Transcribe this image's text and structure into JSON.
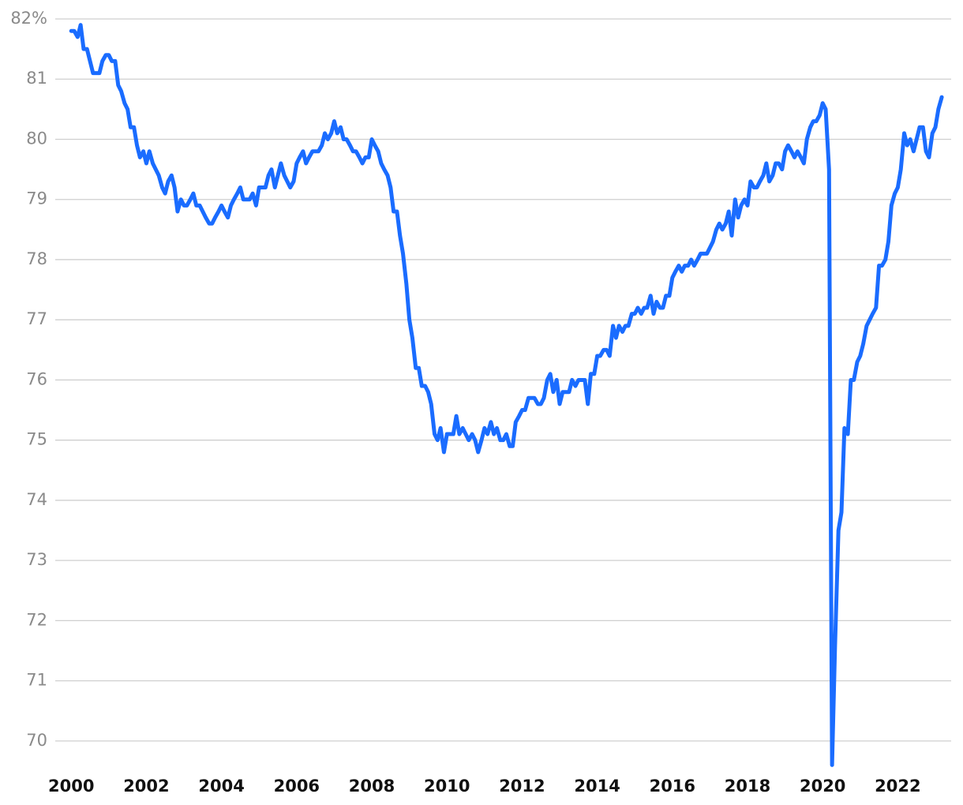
{
  "chart_data": {
    "type": "line",
    "x": [
      2000,
      2000.08,
      2000.17,
      2000.25,
      2000.33,
      2000.42,
      2000.5,
      2000.58,
      2000.67,
      2000.75,
      2000.83,
      2000.92,
      2001,
      2001.08,
      2001.17,
      2001.25,
      2001.33,
      2001.42,
      2001.5,
      2001.58,
      2001.67,
      2001.75,
      2001.83,
      2001.92,
      2002,
      2002.08,
      2002.17,
      2002.25,
      2002.33,
      2002.42,
      2002.5,
      2002.58,
      2002.67,
      2002.75,
      2002.83,
      2002.92,
      2003,
      2003.08,
      2003.17,
      2003.25,
      2003.33,
      2003.42,
      2003.5,
      2003.58,
      2003.67,
      2003.75,
      2003.83,
      2003.92,
      2004,
      2004.08,
      2004.17,
      2004.25,
      2004.33,
      2004.42,
      2004.5,
      2004.58,
      2004.67,
      2004.75,
      2004.83,
      2004.92,
      2005,
      2005.08,
      2005.17,
      2005.25,
      2005.33,
      2005.42,
      2005.5,
      2005.58,
      2005.67,
      2005.75,
      2005.83,
      2005.92,
      2006,
      2006.08,
      2006.17,
      2006.25,
      2006.33,
      2006.42,
      2006.5,
      2006.58,
      2006.67,
      2006.75,
      2006.83,
      2006.92,
      2007,
      2007.08,
      2007.17,
      2007.25,
      2007.33,
      2007.42,
      2007.5,
      2007.58,
      2007.67,
      2007.75,
      2007.83,
      2007.92,
      2008,
      2008.08,
      2008.17,
      2008.25,
      2008.33,
      2008.42,
      2008.5,
      2008.58,
      2008.67,
      2008.75,
      2008.83,
      2008.92,
      2009,
      2009.08,
      2009.17,
      2009.25,
      2009.33,
      2009.42,
      2009.5,
      2009.58,
      2009.67,
      2009.75,
      2009.83,
      2009.92,
      2010,
      2010.08,
      2010.17,
      2010.25,
      2010.33,
      2010.42,
      2010.5,
      2010.58,
      2010.67,
      2010.75,
      2010.83,
      2010.92,
      2011,
      2011.08,
      2011.17,
      2011.25,
      2011.33,
      2011.42,
      2011.5,
      2011.58,
      2011.67,
      2011.75,
      2011.83,
      2011.92,
      2012,
      2012.08,
      2012.17,
      2012.25,
      2012.33,
      2012.42,
      2012.5,
      2012.58,
      2012.67,
      2012.75,
      2012.83,
      2012.92,
      2013,
      2013.08,
      2013.17,
      2013.25,
      2013.33,
      2013.42,
      2013.5,
      2013.58,
      2013.67,
      2013.75,
      2013.83,
      2013.92,
      2014,
      2014.08,
      2014.17,
      2014.25,
      2014.33,
      2014.42,
      2014.5,
      2014.58,
      2014.67,
      2014.75,
      2014.83,
      2014.92,
      2015,
      2015.08,
      2015.17,
      2015.25,
      2015.33,
      2015.42,
      2015.5,
      2015.58,
      2015.67,
      2015.75,
      2015.83,
      2015.92,
      2016,
      2016.08,
      2016.17,
      2016.25,
      2016.33,
      2016.42,
      2016.5,
      2016.58,
      2016.67,
      2016.75,
      2016.83,
      2016.92,
      2017,
      2017.08,
      2017.17,
      2017.25,
      2017.33,
      2017.42,
      2017.5,
      2017.58,
      2017.67,
      2017.75,
      2017.83,
      2017.92,
      2018,
      2018.08,
      2018.17,
      2018.25,
      2018.33,
      2018.42,
      2018.5,
      2018.58,
      2018.67,
      2018.75,
      2018.83,
      2018.92,
      2019,
      2019.08,
      2019.17,
      2019.25,
      2019.33,
      2019.42,
      2019.5,
      2019.58,
      2019.67,
      2019.75,
      2019.83,
      2019.92,
      2020,
      2020.08,
      2020.17,
      2020.25,
      2020.33,
      2020.42,
      2020.5,
      2020.58,
      2020.67,
      2020.75,
      2020.83,
      2020.92,
      2021,
      2021.08,
      2021.17,
      2021.25,
      2021.33,
      2021.42,
      2021.5,
      2021.58,
      2021.67,
      2021.75,
      2021.83,
      2021.92,
      2022,
      2022.08,
      2022.17,
      2022.25,
      2022.33,
      2022.42,
      2022.5,
      2022.58,
      2022.67,
      2022.75,
      2022.83,
      2022.92,
      2023,
      2023.08,
      2023.17
    ],
    "series": [
      {
        "color": "#1a6cff",
        "values": [
          81.8,
          81.8,
          81.7,
          81.9,
          81.5,
          81.5,
          81.3,
          81.1,
          81.1,
          81.1,
          81.3,
          81.4,
          81.4,
          81.3,
          81.3,
          80.9,
          80.8,
          80.6,
          80.5,
          80.2,
          80.2,
          79.9,
          79.7,
          79.8,
          79.6,
          79.8,
          79.6,
          79.5,
          79.4,
          79.2,
          79.1,
          79.3,
          79.4,
          79.2,
          78.8,
          79.0,
          78.9,
          78.9,
          79.0,
          79.1,
          78.9,
          78.9,
          78.8,
          78.7,
          78.6,
          78.6,
          78.7,
          78.8,
          78.9,
          78.8,
          78.7,
          78.9,
          79.0,
          79.1,
          79.2,
          79.0,
          79.0,
          79.0,
          79.1,
          78.9,
          79.2,
          79.2,
          79.2,
          79.4,
          79.5,
          79.2,
          79.4,
          79.6,
          79.4,
          79.3,
          79.2,
          79.3,
          79.6,
          79.7,
          79.8,
          79.6,
          79.7,
          79.8,
          79.8,
          79.8,
          79.9,
          80.1,
          80.0,
          80.1,
          80.3,
          80.1,
          80.2,
          80.0,
          80.0,
          79.9,
          79.8,
          79.8,
          79.7,
          79.6,
          79.7,
          79.7,
          80.0,
          79.9,
          79.8,
          79.6,
          79.5,
          79.4,
          79.2,
          78.8,
          78.8,
          78.4,
          78.1,
          77.6,
          77.0,
          76.7,
          76.2,
          76.2,
          75.9,
          75.9,
          75.8,
          75.6,
          75.1,
          75.0,
          75.2,
          74.8,
          75.1,
          75.1,
          75.1,
          75.4,
          75.1,
          75.2,
          75.1,
          75.0,
          75.1,
          75.0,
          74.8,
          75.0,
          75.2,
          75.1,
          75.3,
          75.1,
          75.2,
          75.0,
          75.0,
          75.1,
          74.9,
          74.9,
          75.3,
          75.4,
          75.5,
          75.5,
          75.7,
          75.7,
          75.7,
          75.6,
          75.6,
          75.7,
          76.0,
          76.1,
          75.8,
          76.0,
          75.6,
          75.8,
          75.8,
          75.8,
          76.0,
          75.9,
          76.0,
          76.0,
          76.0,
          75.6,
          76.1,
          76.1,
          76.4,
          76.4,
          76.5,
          76.5,
          76.4,
          76.9,
          76.7,
          76.9,
          76.8,
          76.9,
          76.9,
          77.1,
          77.1,
          77.2,
          77.1,
          77.2,
          77.2,
          77.4,
          77.1,
          77.3,
          77.2,
          77.2,
          77.4,
          77.4,
          77.7,
          77.8,
          77.9,
          77.8,
          77.9,
          77.9,
          78.0,
          77.9,
          78.0,
          78.1,
          78.1,
          78.1,
          78.2,
          78.3,
          78.5,
          78.6,
          78.5,
          78.6,
          78.8,
          78.4,
          79.0,
          78.7,
          78.9,
          79.0,
          78.9,
          79.3,
          79.2,
          79.2,
          79.3,
          79.4,
          79.6,
          79.3,
          79.4,
          79.6,
          79.6,
          79.5,
          79.8,
          79.9,
          79.8,
          79.7,
          79.8,
          79.7,
          79.6,
          80.0,
          80.2,
          80.3,
          80.3,
          80.4,
          80.6,
          80.5,
          79.5,
          69.6,
          71.6,
          73.5,
          73.8,
          75.2,
          75.1,
          76.0,
          76.0,
          76.3,
          76.4,
          76.6,
          76.9,
          77.0,
          77.1,
          77.2,
          77.9,
          77.9,
          78.0,
          78.3,
          78.9,
          79.1,
          79.2,
          79.5,
          80.1,
          79.9,
          80.0,
          79.8,
          80.0,
          80.2,
          80.2,
          79.8,
          79.7,
          80.1,
          80.2,
          80.5,
          80.7
        ]
      }
    ],
    "xlim": [
      1999.47,
      2023.42
    ],
    "xticks": [
      2000,
      2002,
      2004,
      2006,
      2008,
      2010,
      2012,
      2014,
      2016,
      2018,
      2020,
      2022
    ],
    "ylim": [
      69.5,
      82.2
    ],
    "yticks": [
      70,
      71,
      72,
      73,
      74,
      75,
      76,
      77,
      78,
      79,
      80,
      81,
      {
        "value": 82,
        "label": "82%"
      }
    ],
    "grid": true
  }
}
